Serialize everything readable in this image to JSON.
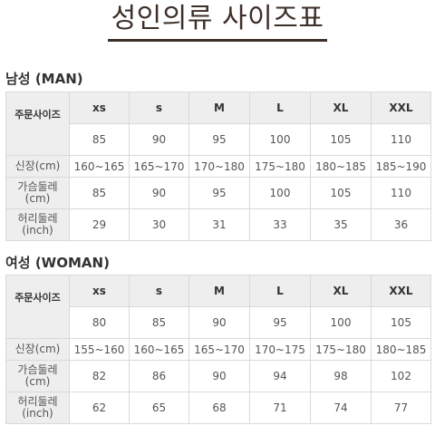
{
  "title": "성인의류 사이즈표",
  "men": {
    "heading": "남성 (MAN)",
    "order_size_label": "주문사이즈",
    "sizes": [
      "xs",
      "s",
      "M",
      "L",
      "XL",
      "XXL"
    ],
    "codes": [
      "85",
      "90",
      "95",
      "100",
      "105",
      "110"
    ],
    "height_label": "신장(cm)",
    "heights": [
      "160~165",
      "165~170",
      "170~180",
      "175~180",
      "180~185",
      "185~190"
    ],
    "chest_label": "가슴둘레\n(cm)",
    "chest": [
      "85",
      "90",
      "95",
      "100",
      "105",
      "110"
    ],
    "waist_label": "허리둘레\n(inch)",
    "waist": [
      "29",
      "30",
      "31",
      "33",
      "35",
      "36"
    ]
  },
  "women": {
    "heading": "여성 (WOMAN)",
    "order_size_label": "주문사이즈",
    "sizes": [
      "xs",
      "s",
      "M",
      "L",
      "XL",
      "XXL"
    ],
    "codes": [
      "80",
      "85",
      "90",
      "95",
      "100",
      "105"
    ],
    "height_label": "신장(cm)",
    "heights": [
      "155~160",
      "160~165",
      "165~170",
      "170~175",
      "175~180",
      "180~185"
    ],
    "chest_label": "가슴둘레\n(cm)",
    "chest": [
      "82",
      "86",
      "90",
      "94",
      "98",
      "102"
    ],
    "waist_label": "허리둘레\n(inch)",
    "waist": [
      "62",
      "65",
      "68",
      "71",
      "74",
      "77"
    ]
  }
}
